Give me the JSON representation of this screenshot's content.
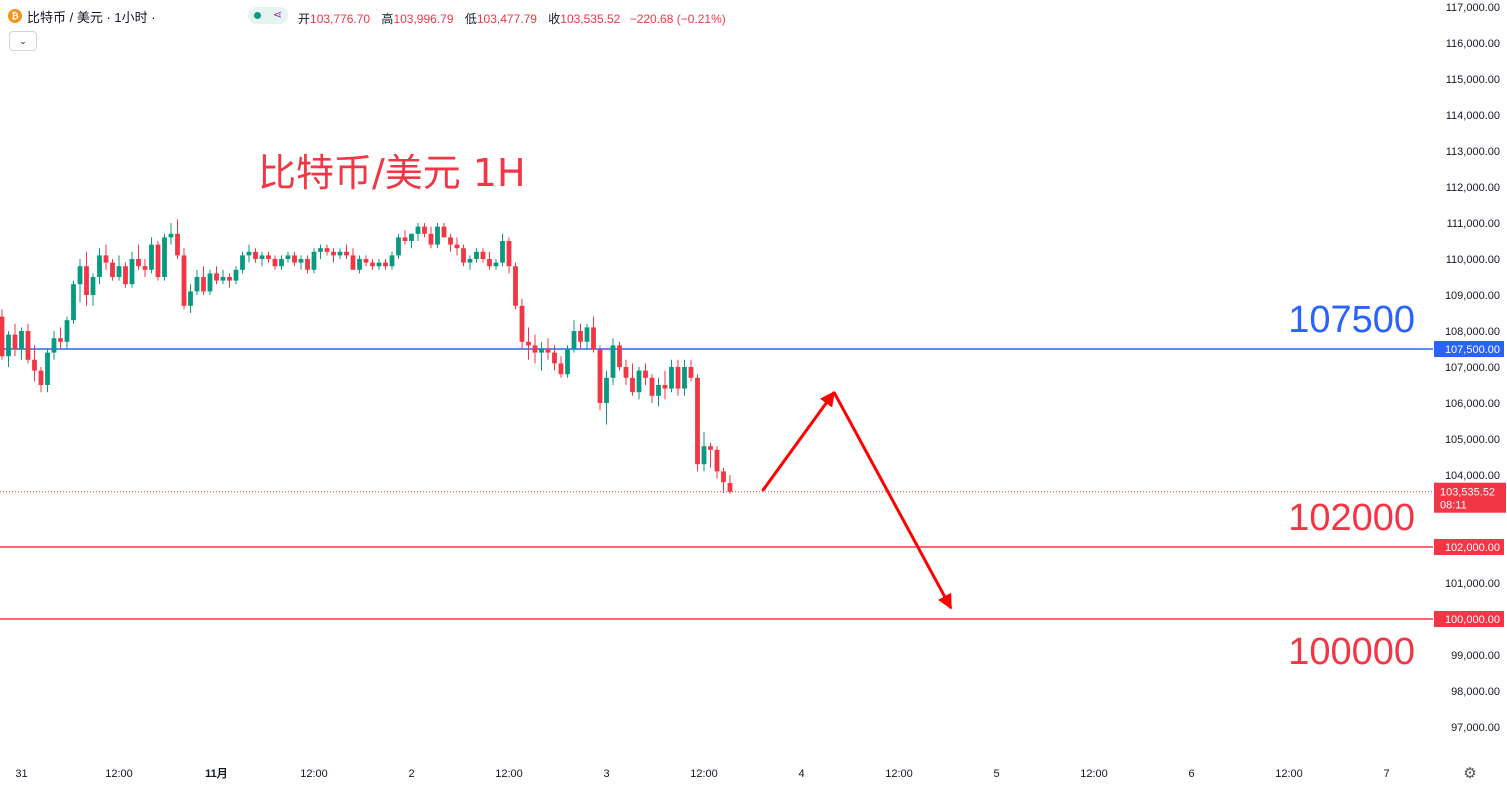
{
  "header": {
    "coin_glyph": "₿",
    "symbol_title": "比特币 / 美元 · 1小时 ·",
    "share_glyph": "⋖",
    "open_label": "开",
    "open": "103,776.70",
    "high_label": "高",
    "high": "103,996.79",
    "low_label": "低",
    "low": "103,477.79",
    "close_label": "收",
    "close": "103,535.52",
    "change": "−220.68 (−0.21%)",
    "collapse_glyph": "⌄"
  },
  "settings_glyph": "⚙",
  "colors": {
    "up": "#089981",
    "down": "#f23645",
    "level_blue": "#2962ff",
    "level_red": "#f23645",
    "arrow": "#ff0000"
  },
  "chart_data": {
    "type": "candlestick",
    "title": "比特币/美元 1H",
    "ylim": [
      96500,
      117200
    ],
    "y_ticks": [
      {
        "v": 117000,
        "label": "117,000.00"
      },
      {
        "v": 116000,
        "label": "116,000.00"
      },
      {
        "v": 115000,
        "label": "115,000.00"
      },
      {
        "v": 114000,
        "label": "114,000.00"
      },
      {
        "v": 113000,
        "label": "113,000.00"
      },
      {
        "v": 112000,
        "label": "112,000.00"
      },
      {
        "v": 111000,
        "label": "111,000.00"
      },
      {
        "v": 110000,
        "label": "110,000.00"
      },
      {
        "v": 109000,
        "label": "109,000.00"
      },
      {
        "v": 108000,
        "label": "108,000.00"
      },
      {
        "v": 107000,
        "label": "107,000.00"
      },
      {
        "v": 106000,
        "label": "106,000.00"
      },
      {
        "v": 105000,
        "label": "105,000.00"
      },
      {
        "v": 104000,
        "label": "104,000.00"
      },
      {
        "v": 101000,
        "label": "101,000.00"
      },
      {
        "v": 99000,
        "label": "99,000.00"
      },
      {
        "v": 98000,
        "label": "98,000.00"
      },
      {
        "v": 97000,
        "label": "97,000.00"
      }
    ],
    "x_ticks": [
      {
        "i": 3,
        "label": "31",
        "bold": false
      },
      {
        "i": 18,
        "label": "12:00",
        "bold": false
      },
      {
        "i": 33,
        "label": "11月",
        "bold": true
      },
      {
        "i": 48,
        "label": "12:00",
        "bold": false
      },
      {
        "i": 63,
        "label": "2",
        "bold": false
      },
      {
        "i": 78,
        "label": "12:00",
        "bold": false
      },
      {
        "i": 93,
        "label": "3",
        "bold": false
      },
      {
        "i": 108,
        "label": "12:00",
        "bold": false
      },
      {
        "i": 123,
        "label": "4",
        "bold": false
      },
      {
        "i": 138,
        "label": "12:00",
        "bold": false
      },
      {
        "i": 153,
        "label": "5",
        "bold": false
      },
      {
        "i": 168,
        "label": "12:00",
        "bold": false
      },
      {
        "i": 183,
        "label": "6",
        "bold": false
      },
      {
        "i": 198,
        "label": "12:00",
        "bold": false
      },
      {
        "i": 213,
        "label": "7",
        "bold": false
      }
    ],
    "candles": [
      [
        108400,
        108600,
        107200,
        107300
      ],
      [
        107300,
        108000,
        107000,
        107900
      ],
      [
        107900,
        108200,
        107300,
        107500
      ],
      [
        107500,
        108100,
        107200,
        108000
      ],
      [
        108000,
        108200,
        107100,
        107200
      ],
      [
        107200,
        107600,
        106600,
        106900
      ],
      [
        106900,
        107000,
        106300,
        106500
      ],
      [
        106500,
        107500,
        106300,
        107400
      ],
      [
        107400,
        108000,
        107200,
        107800
      ],
      [
        107800,
        108100,
        107500,
        107700
      ],
      [
        107700,
        108400,
        107500,
        108300
      ],
      [
        108300,
        109400,
        108200,
        109300
      ],
      [
        109300,
        110000,
        108800,
        109800
      ],
      [
        109800,
        110200,
        108700,
        109000
      ],
      [
        109000,
        109600,
        108700,
        109500
      ],
      [
        109500,
        110300,
        109300,
        110100
      ],
      [
        110100,
        110400,
        109700,
        109900
      ],
      [
        109900,
        110000,
        109400,
        109500
      ],
      [
        109500,
        110100,
        109400,
        109800
      ],
      [
        109800,
        109900,
        109200,
        109300
      ],
      [
        109300,
        110200,
        109200,
        110000
      ],
      [
        110000,
        110400,
        109700,
        109800
      ],
      [
        109800,
        110000,
        109500,
        109700
      ],
      [
        109700,
        110600,
        109600,
        110400
      ],
      [
        110400,
        110500,
        109400,
        109500
      ],
      [
        109500,
        110700,
        109400,
        110600
      ],
      [
        110600,
        111000,
        110400,
        110700
      ],
      [
        110700,
        111100,
        110000,
        110100
      ],
      [
        110100,
        110300,
        108600,
        108700
      ],
      [
        108700,
        109300,
        108500,
        109100
      ],
      [
        109100,
        109700,
        109000,
        109500
      ],
      [
        109500,
        109800,
        109000,
        109100
      ],
      [
        109100,
        109700,
        109000,
        109600
      ],
      [
        109600,
        109800,
        109300,
        109400
      ],
      [
        109400,
        109700,
        109300,
        109500
      ],
      [
        109500,
        109600,
        109200,
        109400
      ],
      [
        109400,
        109800,
        109300,
        109700
      ],
      [
        109700,
        110200,
        109600,
        110100
      ],
      [
        110100,
        110400,
        109900,
        110200
      ],
      [
        110200,
        110300,
        109900,
        110000
      ],
      [
        110000,
        110200,
        109800,
        110100
      ],
      [
        110100,
        110200,
        109900,
        110000
      ],
      [
        110000,
        110100,
        109700,
        109800
      ],
      [
        109800,
        110100,
        109700,
        110000
      ],
      [
        110000,
        110200,
        109900,
        110100
      ],
      [
        110100,
        110200,
        109800,
        109900
      ],
      [
        109900,
        110100,
        109700,
        110000
      ],
      [
        110000,
        110100,
        109600,
        109700
      ],
      [
        109700,
        110300,
        109600,
        110200
      ],
      [
        110200,
        110400,
        110000,
        110300
      ],
      [
        110300,
        110400,
        110100,
        110200
      ],
      [
        110200,
        110300,
        109900,
        110100
      ],
      [
        110100,
        110300,
        110000,
        110200
      ],
      [
        110200,
        110400,
        110000,
        110100
      ],
      [
        110100,
        110300,
        109700,
        109700
      ],
      [
        109700,
        110100,
        109600,
        110000
      ],
      [
        110000,
        110100,
        109800,
        109900
      ],
      [
        109900,
        110000,
        109700,
        109800
      ],
      [
        109800,
        110000,
        109700,
        109900
      ],
      [
        109900,
        110000,
        109700,
        109800
      ],
      [
        109800,
        110200,
        109700,
        110100
      ],
      [
        110100,
        110700,
        110000,
        110600
      ],
      [
        110600,
        110800,
        110400,
        110500
      ],
      [
        110500,
        110700,
        110300,
        110700
      ],
      [
        110700,
        111000,
        110500,
        110900
      ],
      [
        110900,
        111000,
        110600,
        110700
      ],
      [
        110700,
        110900,
        110300,
        110400
      ],
      [
        110400,
        111000,
        110300,
        110900
      ],
      [
        110900,
        111000,
        110600,
        110600
      ],
      [
        110600,
        110700,
        110200,
        110400
      ],
      [
        110400,
        110600,
        110100,
        110300
      ],
      [
        110300,
        110400,
        109800,
        109900
      ],
      [
        109900,
        110100,
        109700,
        110000
      ],
      [
        110000,
        110300,
        109900,
        110200
      ],
      [
        110200,
        110300,
        109900,
        110000
      ],
      [
        110000,
        110200,
        109700,
        109800
      ],
      [
        109800,
        110000,
        109700,
        109900
      ],
      [
        109900,
        110700,
        109800,
        110500
      ],
      [
        110500,
        110600,
        109600,
        109800
      ],
      [
        109800,
        109900,
        108600,
        108700
      ],
      [
        108700,
        108900,
        107500,
        107700
      ],
      [
        107700,
        108100,
        107200,
        107600
      ],
      [
        107600,
        107900,
        107100,
        107400
      ],
      [
        107400,
        107700,
        106900,
        107500
      ],
      [
        107500,
        107800,
        107200,
        107400
      ],
      [
        107400,
        107600,
        106900,
        107100
      ],
      [
        107100,
        107300,
        106700,
        106800
      ],
      [
        106800,
        107600,
        106700,
        107500
      ],
      [
        107500,
        108300,
        107400,
        108000
      ],
      [
        108000,
        108200,
        107500,
        107700
      ],
      [
        107700,
        108200,
        107500,
        108100
      ],
      [
        108100,
        108400,
        107400,
        107500
      ],
      [
        107500,
        107600,
        105800,
        106000
      ],
      [
        106000,
        106900,
        105400,
        106700
      ],
      [
        106700,
        107800,
        106500,
        107600
      ],
      [
        107600,
        107700,
        106900,
        107000
      ],
      [
        107000,
        107200,
        106500,
        106700
      ],
      [
        106700,
        107100,
        106200,
        106300
      ],
      [
        106300,
        107000,
        106100,
        106900
      ],
      [
        106900,
        107100,
        106500,
        106700
      ],
      [
        106700,
        106800,
        106000,
        106200
      ],
      [
        106200,
        106700,
        105900,
        106500
      ],
      [
        106500,
        106900,
        106100,
        106400
      ],
      [
        106400,
        107200,
        106300,
        107000
      ],
      [
        107000,
        107200,
        106200,
        106400
      ],
      [
        106400,
        107200,
        106200,
        107000
      ],
      [
        107000,
        107200,
        106600,
        106700
      ],
      [
        106700,
        106800,
        104100,
        104300
      ],
      [
        104300,
        105200,
        104100,
        104800
      ],
      [
        104800,
        104900,
        104200,
        104700
      ],
      [
        104700,
        104800,
        103900,
        104100
      ],
      [
        104100,
        104200,
        103500,
        103800
      ],
      [
        103777,
        103997,
        103478,
        103536
      ]
    ],
    "levels": [
      {
        "name": "107500",
        "value": 107500,
        "label": "107,500.00",
        "color": "#2962ff"
      },
      {
        "name": "102000",
        "value": 102000,
        "label": "102,000.00",
        "color": "#f23645"
      },
      {
        "name": "100000",
        "value": 100000,
        "label": "100,000.00",
        "color": "#f23645"
      }
    ],
    "last_price": {
      "value": 103535.52,
      "label": "103,535.52",
      "countdown": "08:11"
    },
    "projection_arrow": {
      "points": [
        {
          "i": 117,
          "v": 103560
        },
        {
          "i": 128,
          "v": 106300
        },
        {
          "i": 146,
          "v": 100300
        }
      ]
    }
  }
}
